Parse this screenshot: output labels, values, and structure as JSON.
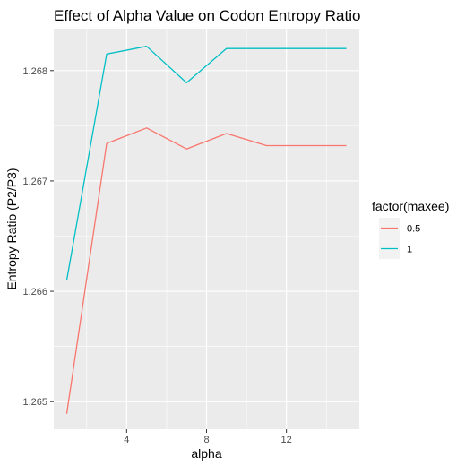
{
  "chart_data": {
    "type": "line",
    "title": "Effect of Alpha Value on Codon Entropy Ratio",
    "xlabel": "alpha",
    "ylabel": "Entropy Ratio (P2/P3)",
    "xlim": [
      0.35,
      15.65
    ],
    "ylim": [
      1.26475,
      1.26838
    ],
    "x_ticks": [
      4,
      8,
      12
    ],
    "x_tick_labels": [
      "4",
      "8",
      "12"
    ],
    "y_ticks": [
      1.265,
      1.266,
      1.267,
      1.268
    ],
    "y_tick_labels": [
      "1.265",
      "1.266",
      "1.267",
      "1.268"
    ],
    "grid": true,
    "legend": {
      "title": "factor(maxee)",
      "position": "right"
    },
    "x": [
      1,
      3,
      5,
      7,
      9,
      11,
      13,
      15
    ],
    "series": [
      {
        "name": "0.5",
        "color": "#F8766D",
        "values": [
          1.26489,
          1.26734,
          1.26748,
          1.26729,
          1.26743,
          1.26732,
          1.26732,
          1.26732
        ]
      },
      {
        "name": "1",
        "color": "#00BFC4",
        "values": [
          1.2661,
          1.26815,
          1.26822,
          1.26789,
          1.2682,
          1.2682,
          1.2682,
          1.2682
        ]
      }
    ],
    "colors": {
      "panel_background": "#EBEBEB",
      "grid_major": "#FFFFFF",
      "legend_key_background": "#F2F2F2"
    }
  }
}
